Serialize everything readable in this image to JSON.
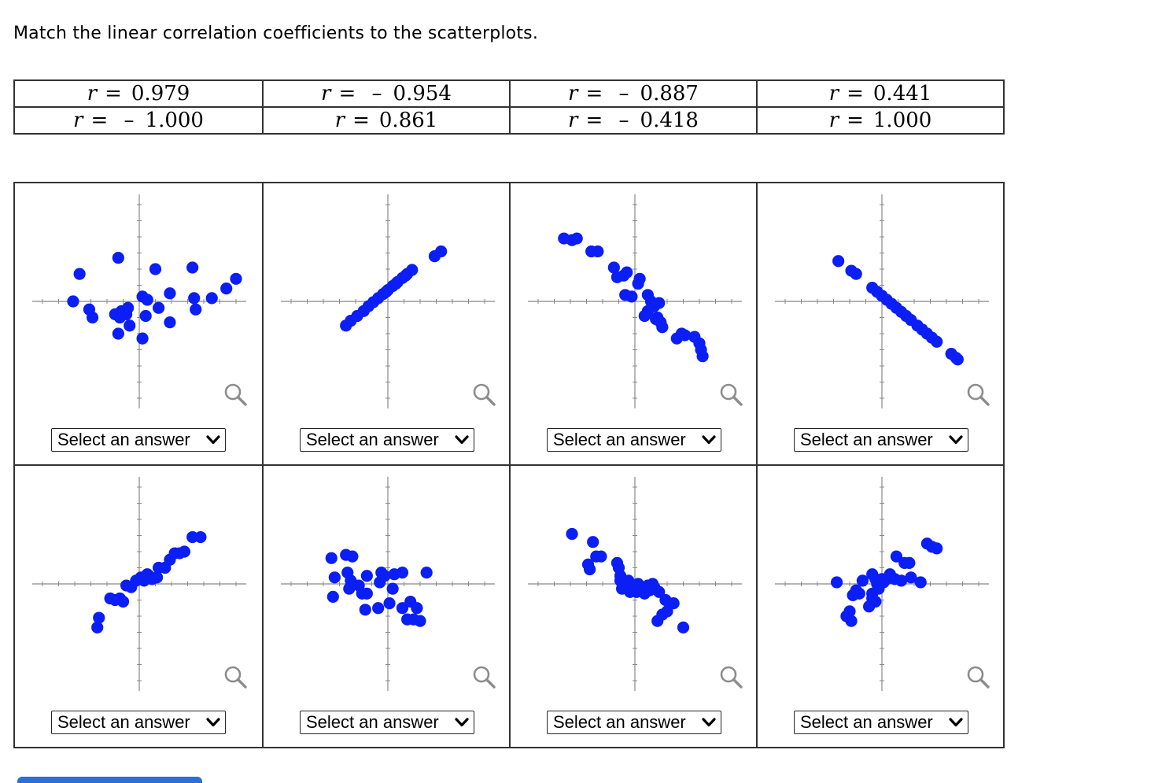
{
  "prompt": "Match the linear correlation coefficients to the scatterplots.",
  "coefficients": [
    [
      {
        "sign": "",
        "value": "0.979"
      },
      {
        "sign": "–",
        "value": "0.954"
      },
      {
        "sign": "–",
        "value": "0.887"
      },
      {
        "sign": "",
        "value": "0.441"
      }
    ],
    [
      {
        "sign": "–",
        "value": "1.000"
      },
      {
        "sign": "",
        "value": "0.861"
      },
      {
        "sign": "–",
        "value": "0.418"
      },
      {
        "sign": "",
        "value": "1.000"
      }
    ]
  ],
  "r_symbol": "r",
  "equals": "=",
  "select_label": "Select an answer",
  "colors": {
    "points": "#0a1ef5",
    "axis": "#888888",
    "border": "#333333",
    "submit": "#2f6fd1"
  },
  "chart_data": [
    {
      "type": "scatter",
      "panel": 1,
      "points": [
        [
          -3.7,
          1.7
        ],
        [
          -1.3,
          2.7
        ],
        [
          1,
          2
        ],
        [
          3.3,
          2.1
        ],
        [
          -4.1,
          0
        ],
        [
          -3.1,
          -0.5
        ],
        [
          -2.9,
          -1
        ],
        [
          -1.2,
          -1
        ],
        [
          -1.1,
          -0.6
        ],
        [
          -0.8,
          -0.8
        ],
        [
          -1.3,
          -2
        ],
        [
          -0.6,
          -1.5
        ],
        [
          0.2,
          0.3
        ],
        [
          0.5,
          0.1
        ],
        [
          0.4,
          -0.9
        ],
        [
          1.2,
          -0.4
        ],
        [
          1.9,
          -1.3
        ],
        [
          3.5,
          -0.5
        ],
        [
          3.4,
          0.2
        ],
        [
          4.5,
          0.2
        ],
        [
          5.4,
          0.8
        ],
        [
          6,
          1.4
        ],
        [
          1.9,
          0.5
        ],
        [
          0.2,
          -2.3
        ],
        [
          -1.5,
          -0.8
        ],
        [
          -0.7,
          -0.4
        ]
      ]
    },
    {
      "type": "scatter",
      "panel": 2,
      "points": [
        [
          -2.6,
          -1.5
        ],
        [
          -2.3,
          -1.2
        ],
        [
          -1.9,
          -0.9
        ],
        [
          -1.5,
          -0.6
        ],
        [
          -1.2,
          -0.3
        ],
        [
          -0.9,
          -0.05
        ],
        [
          -0.6,
          0.2
        ],
        [
          -0.3,
          0.45
        ],
        [
          0,
          0.7
        ],
        [
          0.3,
          0.95
        ],
        [
          0.6,
          1.2
        ],
        [
          0.9,
          1.45
        ],
        [
          1.2,
          1.7
        ],
        [
          1.5,
          1.95
        ],
        [
          2.9,
          2.8
        ],
        [
          3.3,
          3.1
        ],
        [
          -0.1,
          0.6
        ],
        [
          0.5,
          1.1
        ],
        [
          1.1,
          1.6
        ]
      ]
    },
    {
      "type": "scatter",
      "panel": 3,
      "points": [
        [
          -4.4,
          3.9
        ],
        [
          -3.9,
          3.8
        ],
        [
          -3.6,
          3.9
        ],
        [
          -2.7,
          3.1
        ],
        [
          -2.3,
          3.1
        ],
        [
          -1.3,
          2.1
        ],
        [
          -1.1,
          1.5
        ],
        [
          -0.7,
          1.6
        ],
        [
          -0.5,
          1.8
        ],
        [
          0.2,
          1.1
        ],
        [
          0.3,
          1.4
        ],
        [
          -0.6,
          0.4
        ],
        [
          -0.2,
          0.3
        ],
        [
          0.8,
          0.4
        ],
        [
          1,
          0
        ],
        [
          1.2,
          -0.3
        ],
        [
          0.6,
          -0.9
        ],
        [
          0.8,
          -0.6
        ],
        [
          1.4,
          -1
        ],
        [
          1.6,
          -1.3
        ],
        [
          1.3,
          -1.1
        ],
        [
          1.7,
          -1.6
        ],
        [
          1.5,
          -0.1
        ],
        [
          2.6,
          -2.3
        ],
        [
          2.9,
          -2
        ],
        [
          3.1,
          -2.1
        ],
        [
          3.7,
          -2.2
        ],
        [
          4,
          -2.6
        ],
        [
          4.1,
          -3
        ],
        [
          4.2,
          -3.4
        ]
      ]
    },
    {
      "type": "scatter",
      "panel": 4,
      "points": [
        [
          -2.7,
          2.5
        ],
        [
          -1.9,
          1.9
        ],
        [
          -1.6,
          1.7
        ],
        [
          -0.6,
          0.85
        ],
        [
          -0.3,
          0.6
        ],
        [
          0,
          0.35
        ],
        [
          0.3,
          0.1
        ],
        [
          0.6,
          -0.15
        ],
        [
          0.9,
          -0.4
        ],
        [
          1.2,
          -0.65
        ],
        [
          1.5,
          -0.9
        ],
        [
          1.8,
          -1.15
        ],
        [
          2.2,
          -1.5
        ],
        [
          2.5,
          -1.75
        ],
        [
          2.8,
          -2
        ],
        [
          3.1,
          -2.25
        ],
        [
          3.4,
          -2.5
        ],
        [
          4.3,
          -3.25
        ],
        [
          4.6,
          -3.5
        ],
        [
          4.7,
          -3.6
        ]
      ]
    },
    {
      "type": "scatter",
      "panel": 5,
      "points": [
        [
          -2.5,
          -2.1
        ],
        [
          -2.6,
          -2.7
        ],
        [
          -1.8,
          -0.9
        ],
        [
          -1.5,
          -1
        ],
        [
          -1.2,
          -0.9
        ],
        [
          -1,
          -1.1
        ],
        [
          -0.8,
          -0.1
        ],
        [
          -0.5,
          -0.2
        ],
        [
          -0.2,
          0.2
        ],
        [
          0.3,
          0.2
        ],
        [
          0.5,
          0.6
        ],
        [
          0.8,
          0.3
        ],
        [
          1.2,
          1
        ],
        [
          1.6,
          1
        ],
        [
          1.9,
          1.5
        ],
        [
          2.2,
          1.9
        ],
        [
          2.5,
          1.9
        ],
        [
          2.8,
          2
        ],
        [
          3.3,
          2.9
        ],
        [
          3.8,
          2.9
        ],
        [
          1.1,
          0.4
        ],
        [
          0.1,
          0.4
        ],
        [
          0.6,
          0.5
        ]
      ]
    },
    {
      "type": "scatter",
      "panel": 6,
      "points": [
        [
          -3.5,
          1.6
        ],
        [
          -2.6,
          1.8
        ],
        [
          -2.2,
          1.7
        ],
        [
          -3.3,
          0.4
        ],
        [
          -2.5,
          0.7
        ],
        [
          -2.3,
          0.2
        ],
        [
          -1.3,
          0.5
        ],
        [
          -0.4,
          0.7
        ],
        [
          -0.3,
          0.5
        ],
        [
          0.4,
          0.6
        ],
        [
          0.9,
          0.7
        ],
        [
          2.4,
          0.7
        ],
        [
          -2.4,
          -0.3
        ],
        [
          -1.8,
          -0.1
        ],
        [
          -1.6,
          -0.6
        ],
        [
          -1.3,
          -0.6
        ],
        [
          -3.4,
          -0.8
        ],
        [
          -1.4,
          -1.6
        ],
        [
          -0.6,
          -1.5
        ],
        [
          0.1,
          -1.2
        ],
        [
          0.9,
          -1.5
        ],
        [
          1.8,
          -1.5
        ],
        [
          2,
          -2.3
        ],
        [
          1.4,
          -1.1
        ],
        [
          1.6,
          -2.2
        ],
        [
          1.2,
          -2.2
        ],
        [
          -0.2,
          0.5
        ],
        [
          -0.5,
          0.1
        ],
        [
          0.3,
          -0.3
        ]
      ]
    },
    {
      "type": "scatter",
      "panel": 7,
      "points": [
        [
          -3.9,
          3.1
        ],
        [
          -2.6,
          2.6
        ],
        [
          -2.4,
          1.7
        ],
        [
          -2.1,
          1.7
        ],
        [
          -2.9,
          1.2
        ],
        [
          -2.8,
          0.9
        ],
        [
          -1.1,
          1.3
        ],
        [
          -1,
          1
        ],
        [
          -0.9,
          0.5
        ],
        [
          -0.9,
          0.2
        ],
        [
          -0.6,
          0.1
        ],
        [
          -0.4,
          0.2
        ],
        [
          -0.2,
          -0.1
        ],
        [
          0.2,
          0
        ],
        [
          0.5,
          -0.2
        ],
        [
          0.8,
          -0.1
        ],
        [
          1.1,
          0
        ],
        [
          1.2,
          -0.2
        ],
        [
          -0.3,
          -0.5
        ],
        [
          0.1,
          -0.5
        ],
        [
          0.6,
          -0.6
        ],
        [
          1.5,
          -0.5
        ],
        [
          1.9,
          -1
        ],
        [
          2.4,
          -1.2
        ],
        [
          2,
          -1.7
        ],
        [
          1.7,
          -1.9
        ],
        [
          1.4,
          -2.3
        ],
        [
          3,
          -2.7
        ],
        [
          0.9,
          -0.4
        ],
        [
          -0.8,
          -0.3
        ]
      ]
    },
    {
      "type": "scatter",
      "panel": 8,
      "points": [
        [
          -2.8,
          0.1
        ],
        [
          -1.6,
          -0.4
        ],
        [
          -1.8,
          -0.7
        ],
        [
          -1.4,
          -0.6
        ],
        [
          -1.2,
          0.2
        ],
        [
          -0.6,
          0.6
        ],
        [
          -0.4,
          0.3
        ],
        [
          -0.3,
          0
        ],
        [
          -0.2,
          -0.3
        ],
        [
          -0.6,
          -0.6
        ],
        [
          -0.6,
          -0.9
        ],
        [
          -0.4,
          -1.1
        ],
        [
          -0.8,
          -1.4
        ],
        [
          -2,
          -1.7
        ],
        [
          -2.2,
          -2
        ],
        [
          -1.9,
          -2.3
        ],
        [
          0.5,
          0.6
        ],
        [
          0,
          0.3
        ],
        [
          0.3,
          0.3
        ],
        [
          0.8,
          0.3
        ],
        [
          1.2,
          0.2
        ],
        [
          1.8,
          0.4
        ],
        [
          2.4,
          0.1
        ],
        [
          0.9,
          1.7
        ],
        [
          1.4,
          1.3
        ],
        [
          1.7,
          1.3
        ],
        [
          2.8,
          2.5
        ],
        [
          3.1,
          2.3
        ],
        [
          3.4,
          2.2
        ],
        [
          0.1,
          0.1
        ]
      ]
    }
  ]
}
